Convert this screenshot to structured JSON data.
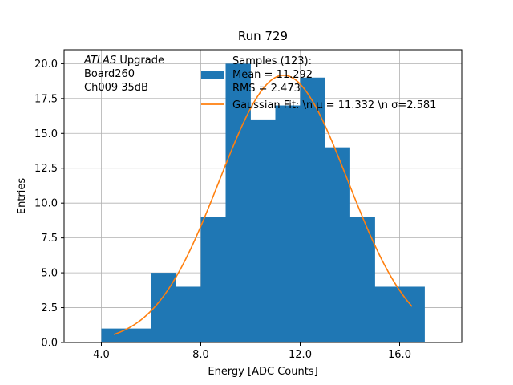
{
  "chart_data": {
    "type": "bar",
    "title": "Run 729",
    "xlabel": "Energy [ADC Counts]",
    "ylabel": "Entries",
    "xlim": [
      2.5,
      18.5
    ],
    "ylim": [
      0,
      21
    ],
    "xticks": [
      4.0,
      8.0,
      12.0,
      16.0
    ],
    "xtick_labels": [
      "4.0",
      "8.0",
      "12.0",
      "16.0"
    ],
    "yticks": [
      0,
      2.5,
      5,
      7.5,
      10,
      12.5,
      15,
      17.5,
      20
    ],
    "ytick_labels": [
      "0.0",
      "2.5",
      "5.0",
      "7.5",
      "10.0",
      "12.5",
      "15.0",
      "17.5",
      "20.0"
    ],
    "grid": true,
    "histogram": {
      "bin_edges": [
        4,
        5,
        6,
        7,
        8,
        9,
        10,
        11,
        12,
        13,
        14,
        15,
        16,
        17
      ],
      "counts": [
        1,
        1,
        5,
        4,
        9,
        20,
        16,
        17,
        19,
        14,
        9,
        4,
        4
      ],
      "color": "#1f77b4"
    },
    "fit": {
      "type": "gaussian",
      "amplitude": 19.17,
      "mu": 11.332,
      "sigma": 2.581,
      "x_range": [
        4.5,
        16.5
      ],
      "color": "#ff7f0e"
    },
    "legend": {
      "placement": "top-center",
      "entries": [
        {
          "lines": [
            "Samples (123):",
            " Mean = 11.292",
            " RMS = 2.473"
          ],
          "kind": "patch",
          "color": "#1f77b4"
        },
        {
          "lines": [
            "Gaussian Fit: \\n μ = 11.332 \\n σ=2.581"
          ],
          "kind": "line",
          "color": "#ff7f0e"
        }
      ]
    },
    "annotation": {
      "italic": "ATLAS",
      "rest": " Upgrade",
      "lines": [
        " Board260",
        " Ch009 35dB"
      ]
    }
  }
}
